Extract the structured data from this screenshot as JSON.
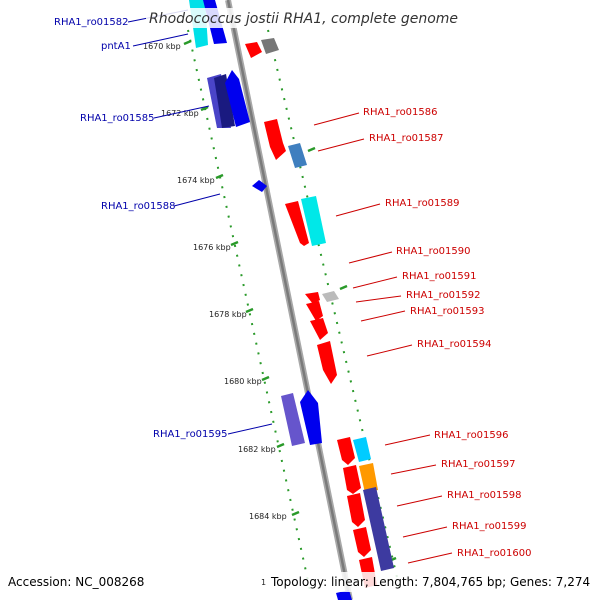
{
  "title": "Rhodococcus jostii RHA1, complete genome",
  "footer": {
    "accession": "Accession: NC_008268",
    "topology": "Topology: linear; Length: 7,804,765 bp; Genes: 7,274",
    "corner_digit": "1"
  },
  "colors": {
    "backbone": "#8a8a8a",
    "tick": "#2a9a2a",
    "left_label": "#0000aa",
    "right_label": "#cc0000",
    "red": "#ff0000",
    "blue": "#0000ee",
    "cyan": "#00e0e8",
    "navy": "#3d3aa0",
    "orange": "#ff9900",
    "gray": "#888888",
    "steel": "#3f7fbf"
  },
  "ticks": [
    "1670 kbp",
    "1672 kbp",
    "1674 kbp",
    "1676 kbp",
    "1678 kbp",
    "1680 kbp",
    "1682 kbp",
    "1684 kbp"
  ],
  "labels_left": [
    "RHA1_ro01582",
    "pntA1",
    "RHA1_ro01585",
    "RHA1_ro01588",
    "RHA1_ro01595"
  ],
  "labels_right": [
    "RHA1_ro01586",
    "RHA1_ro01587",
    "RHA1_ro01589",
    "RHA1_ro01590",
    "RHA1_ro01591",
    "RHA1_ro01592",
    "RHA1_ro01593",
    "RHA1_ro01594",
    "RHA1_ro01596",
    "RHA1_ro01597",
    "RHA1_ro01598",
    "RHA1_ro01599",
    "RHA1_ro01600"
  ]
}
